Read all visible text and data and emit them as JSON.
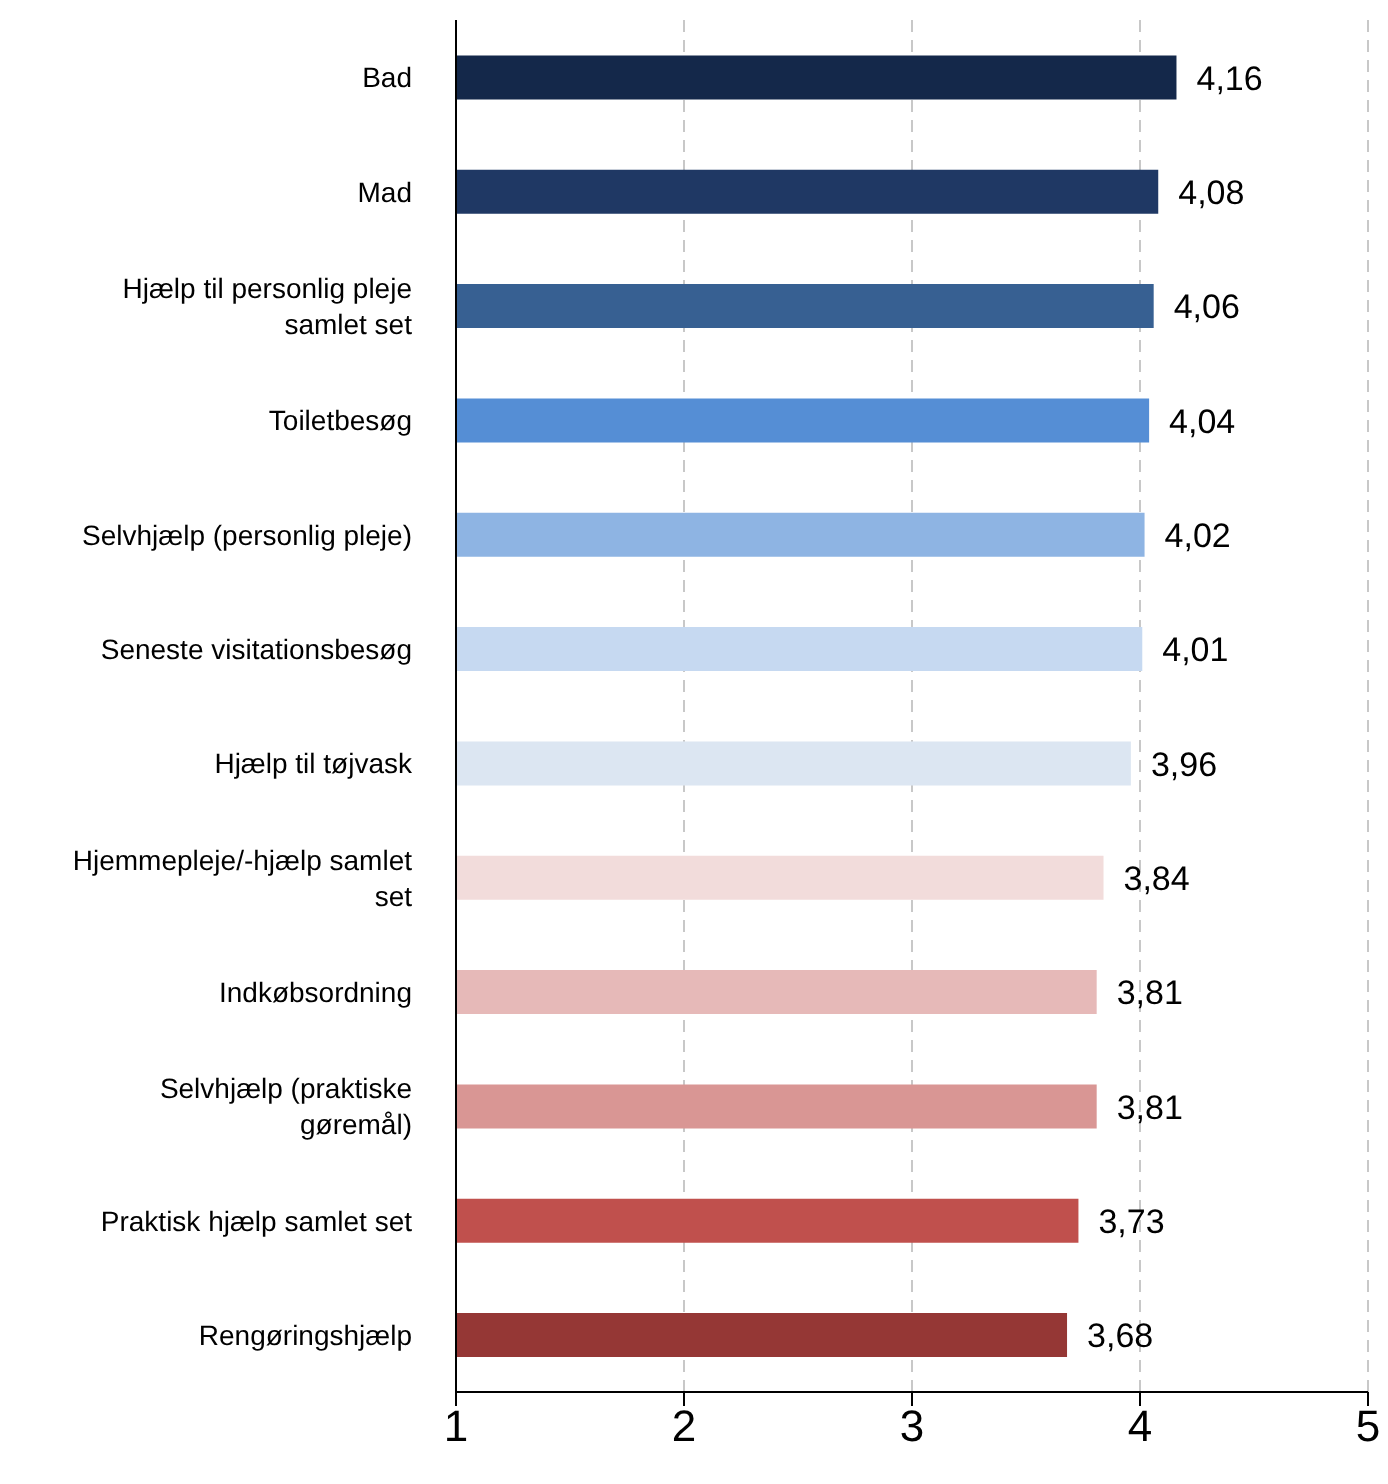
{
  "chart_data": {
    "type": "bar",
    "orientation": "horizontal",
    "categories": [
      "Bad",
      "Mad",
      "Hjælp til personlig pleje samlet set",
      "Toiletbesøg",
      "Selvhjælp (personlig pleje)",
      "Seneste visitationsbesøg",
      "Hjælp til tøjvask",
      "Hjemmepleje/-hjælp samlet set",
      "Indkøbsordning",
      "Selvhjælp (praktiske gøremål)",
      "Praktisk hjælp samlet set",
      "Rengøringshjælp"
    ],
    "values": [
      4.16,
      4.08,
      4.06,
      4.04,
      4.02,
      4.01,
      3.96,
      3.84,
      3.81,
      3.81,
      3.73,
      3.68
    ],
    "value_labels": [
      "4,16",
      "4,08",
      "4,06",
      "4,04",
      "4,02",
      "4,01",
      "3,96",
      "3,84",
      "3,81",
      "3,81",
      "3,73",
      "3,68"
    ],
    "colors": [
      "#14284a",
      "#1f3864",
      "#376092",
      "#558ed5",
      "#8eb4e3",
      "#c6d9f1",
      "#dce6f2",
      "#f2dcdb",
      "#e6b9b8",
      "#d99694",
      "#c0504d",
      "#953735"
    ],
    "xlim": [
      1,
      5
    ],
    "xticks": [
      1,
      2,
      3,
      4,
      5
    ],
    "grid": "x"
  }
}
